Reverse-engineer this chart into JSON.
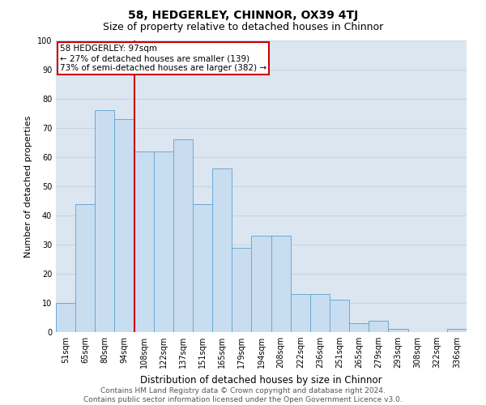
{
  "title": "58, HEDGERLEY, CHINNOR, OX39 4TJ",
  "subtitle": "Size of property relative to detached houses in Chinnor",
  "xlabel": "Distribution of detached houses by size in Chinnor",
  "ylabel": "Number of detached properties",
  "categories": [
    "51sqm",
    "65sqm",
    "80sqm",
    "94sqm",
    "108sqm",
    "122sqm",
    "137sqm",
    "151sqm",
    "165sqm",
    "179sqm",
    "194sqm",
    "208sqm",
    "222sqm",
    "236sqm",
    "251sqm",
    "265sqm",
    "279sqm",
    "293sqm",
    "308sqm",
    "322sqm",
    "336sqm"
  ],
  "values": [
    10,
    44,
    76,
    73,
    62,
    62,
    66,
    44,
    56,
    29,
    33,
    33,
    13,
    13,
    11,
    3,
    4,
    1,
    0,
    0,
    1
  ],
  "bar_color": "#c9ddf0",
  "bar_edge_color": "#6aaad4",
  "ref_line_color": "#cc0000",
  "annotation_box_edge_color": "#cc0000",
  "annotation_box_face_color": "#ffffff",
  "ylim": [
    0,
    100
  ],
  "yticks": [
    0,
    10,
    20,
    30,
    40,
    50,
    60,
    70,
    80,
    90,
    100
  ],
  "grid_color": "#c8d4e3",
  "background_color": "#dce6f1",
  "footer": "Contains HM Land Registry data © Crown copyright and database right 2024.\nContains public sector information licensed under the Open Government Licence v3.0.",
  "title_fontsize": 10,
  "subtitle_fontsize": 9,
  "xlabel_fontsize": 8.5,
  "ylabel_fontsize": 8,
  "tick_fontsize": 7,
  "footer_fontsize": 6.5,
  "annotation_fontsize": 7.5,
  "reference_line_label": "58 HEDGERLEY: 97sqm",
  "annotation_line1": "← 27% of detached houses are smaller (139)",
  "annotation_line2": "73% of semi-detached houses are larger (382) →"
}
